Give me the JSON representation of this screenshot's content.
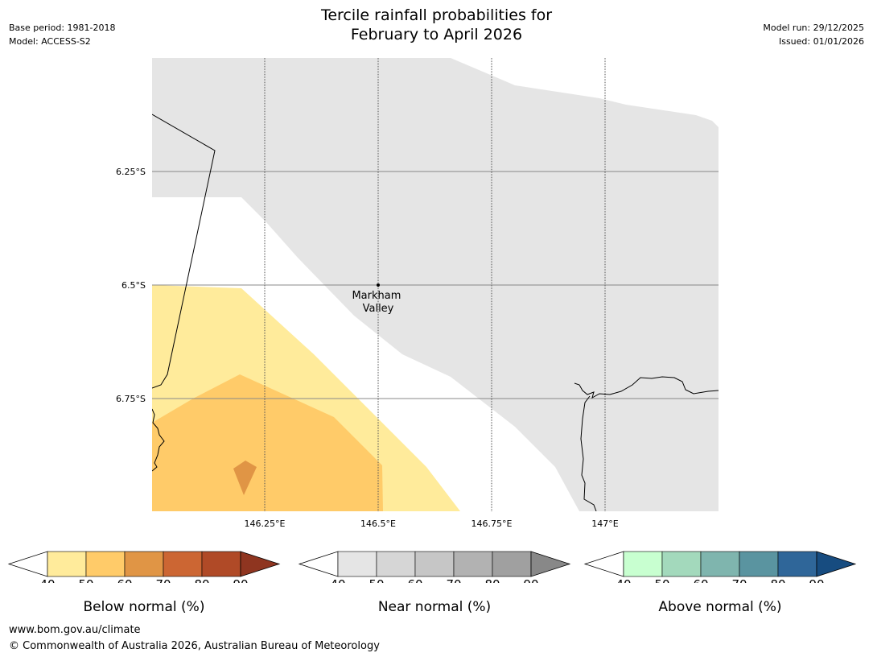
{
  "header": {
    "base_period": "Base period: 1981-2018",
    "model": "Model: ACCESS-S2",
    "title_line1": "Tercile rainfall probabilities for",
    "title_line2": "February to April 2026",
    "model_run": "Model run: 29/12/2025",
    "issued": "Issued: 01/01/2026"
  },
  "map": {
    "lat_labels": [
      "6.25°S",
      "6.5°S",
      "6.75°S"
    ],
    "lon_labels": [
      "146.25°E",
      "146.5°E",
      "146.75°E",
      "147°E"
    ],
    "place_name_line1": "Markham",
    "place_name_line2": "Valley",
    "colors": {
      "near_normal_region": "#e5e5e5",
      "below_40_50": "#ffeb9b",
      "below_50_60": "#ffcb69",
      "below_60_70": "#e09545",
      "gridline": "#888888"
    }
  },
  "colorbars": [
    {
      "label": "Below normal (%)",
      "ticks": [
        "40",
        "50",
        "60",
        "70",
        "80",
        "90"
      ],
      "colors": [
        "#ffeb9b",
        "#ffcb69",
        "#e09545",
        "#cc6633",
        "#b04a27",
        "#8f3520"
      ]
    },
    {
      "label": "Near normal (%)",
      "ticks": [
        "40",
        "50",
        "60",
        "70",
        "80",
        "90"
      ],
      "colors": [
        "#e5e5e5",
        "#d6d6d6",
        "#c6c6c6",
        "#b2b2b2",
        "#a0a0a0",
        "#888888"
      ]
    },
    {
      "label": "Above normal (%)",
      "ticks": [
        "40",
        "50",
        "60",
        "70",
        "80",
        "90"
      ],
      "colors": [
        "#c8ffd0",
        "#a3d9bc",
        "#7fb5ae",
        "#5a94a0",
        "#2f6699",
        "#174c80"
      ]
    }
  ],
  "footer": {
    "url": "www.bom.gov.au/climate",
    "copyright": "© Commonwealth of Australia 2026, Australian Bureau of Meteorology"
  }
}
